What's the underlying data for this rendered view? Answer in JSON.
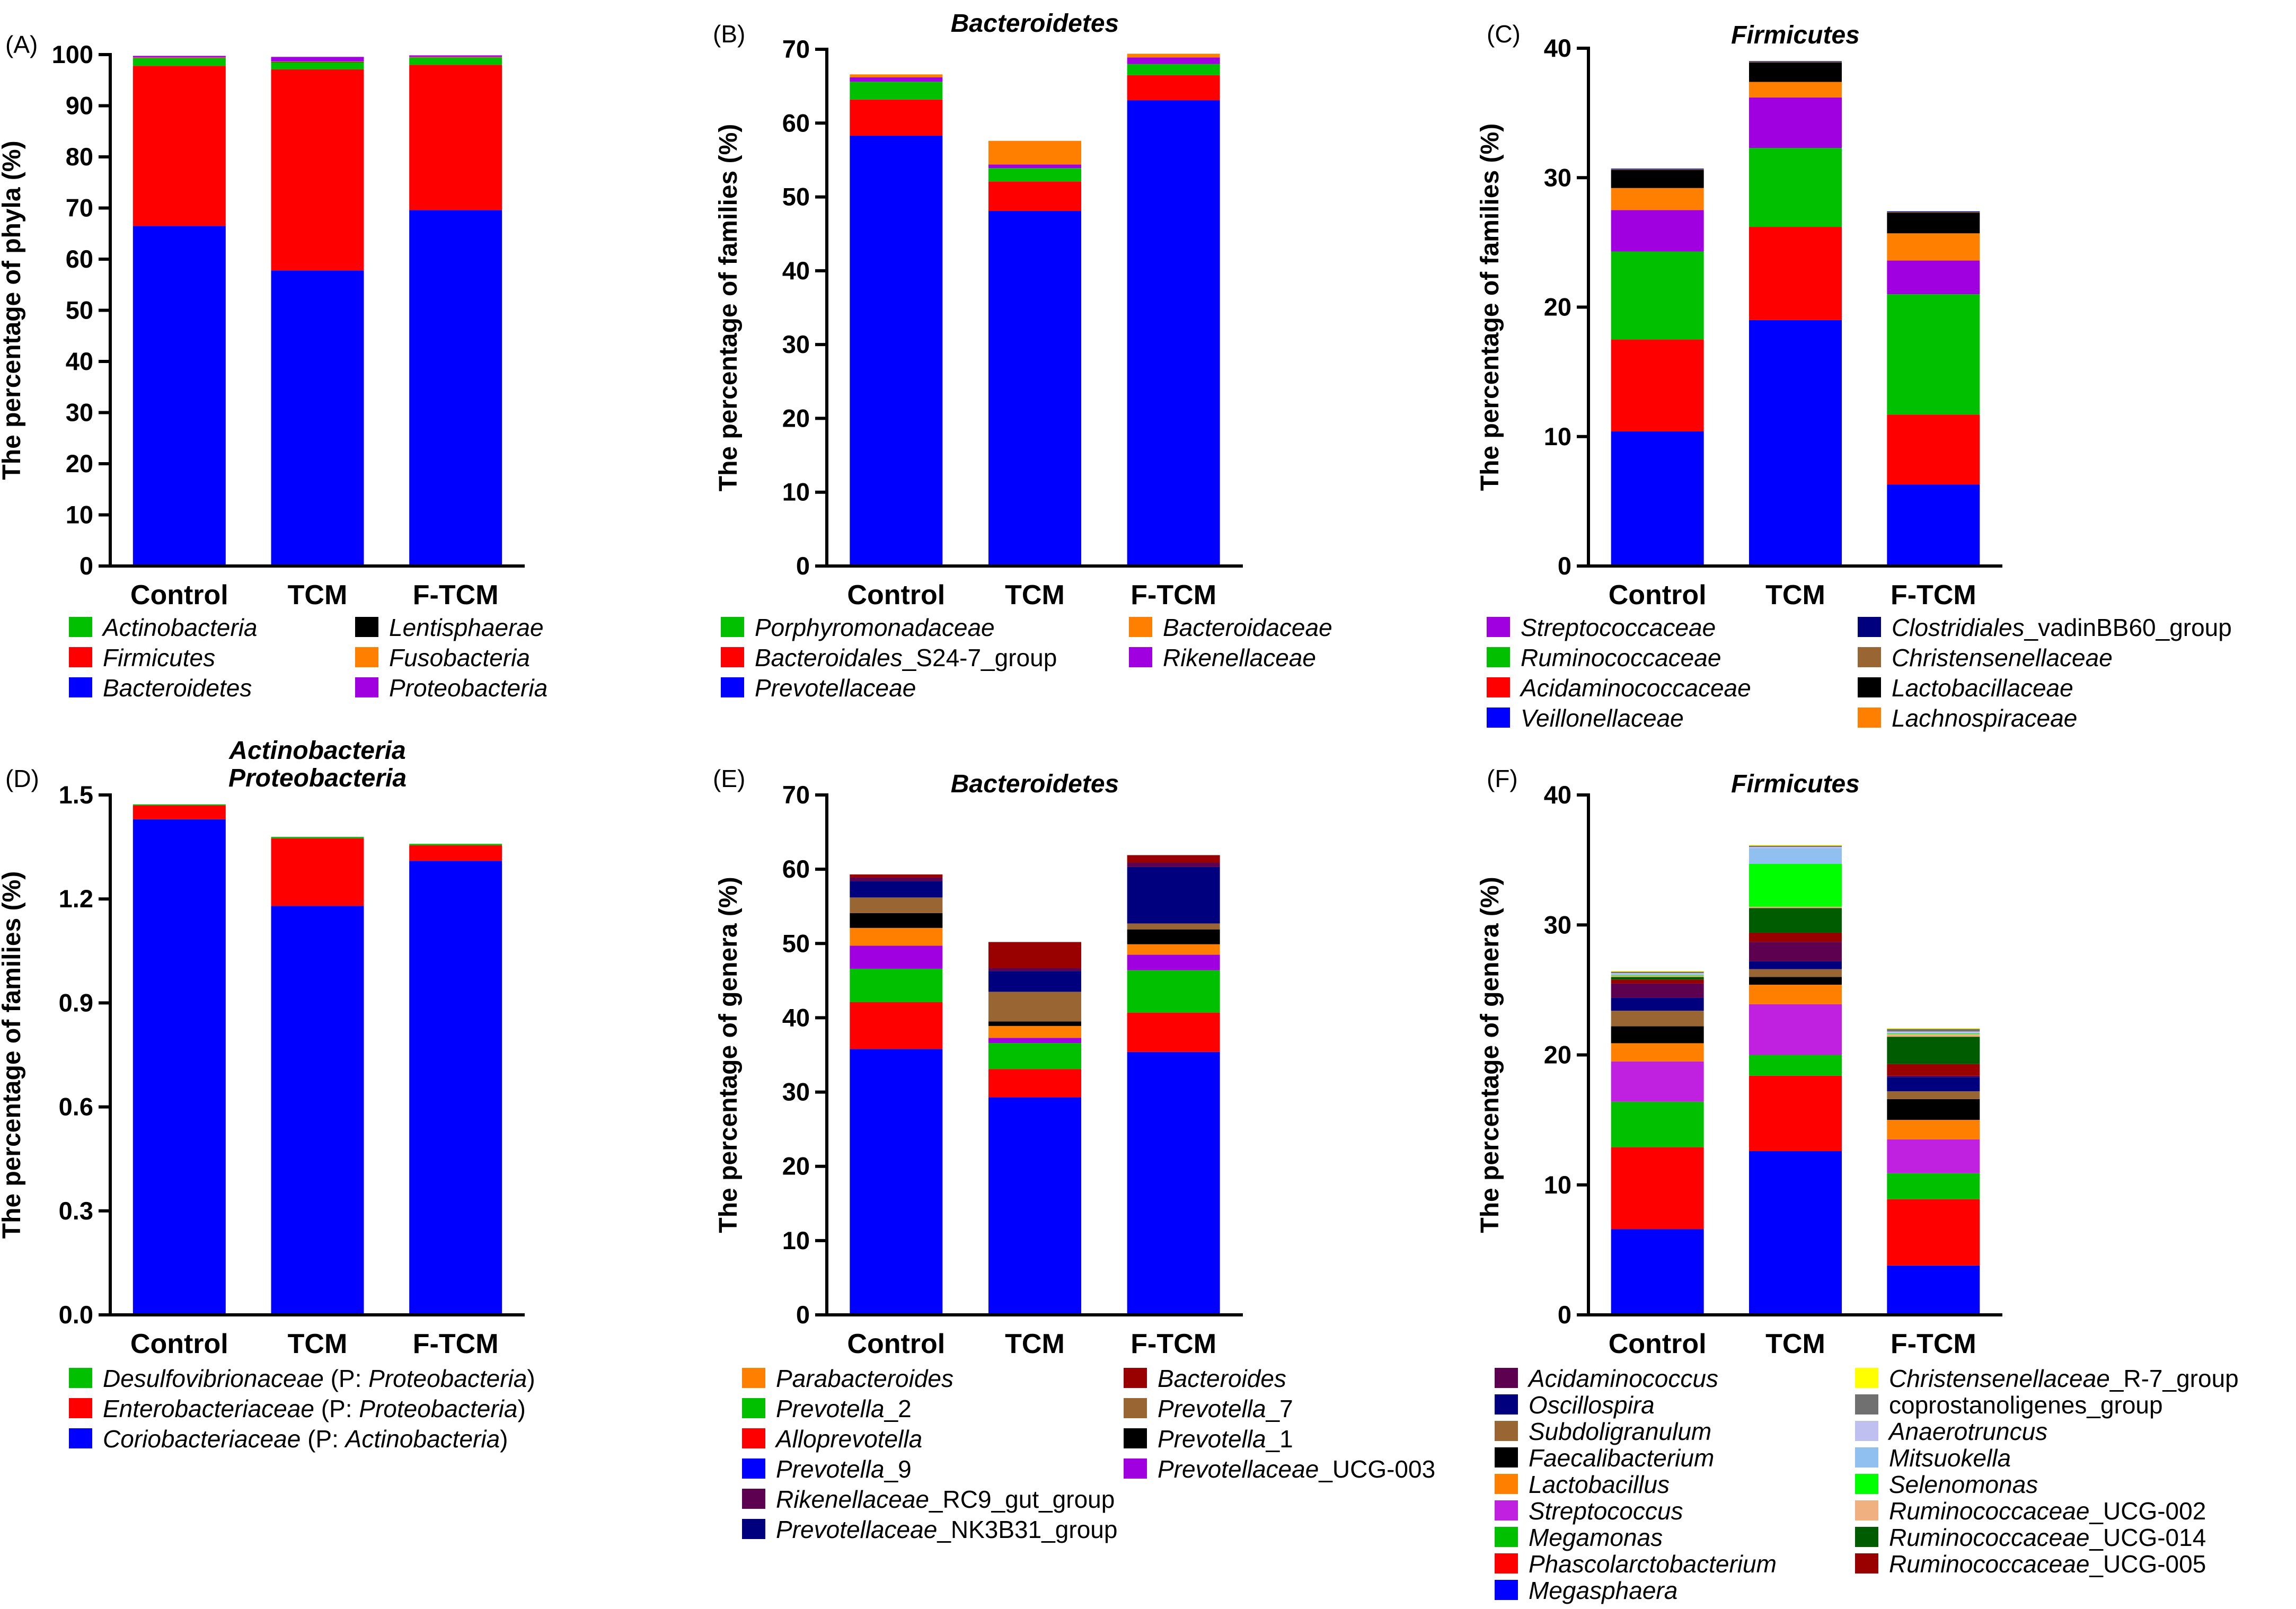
{
  "chart_data": [
    {
      "id": "A",
      "type": "bar",
      "stacked": true,
      "panel_label": "(A)",
      "title": "",
      "xlabel": "",
      "ylabel": "The percentage of phyla (%)",
      "ylim": [
        0,
        100
      ],
      "yticks": [
        "0",
        "10",
        "20",
        "30",
        "40",
        "50",
        "60",
        "70",
        "80",
        "90",
        "100"
      ],
      "categories": [
        "Control",
        "TCM",
        "F-TCM"
      ],
      "series": [
        {
          "name": "Bacteroidetes",
          "italic": true,
          "suffix": "",
          "color": "#0000ff",
          "values": [
            66.5,
            57.8,
            69.6
          ]
        },
        {
          "name": "Firmicutes",
          "italic": true,
          "suffix": "",
          "color": "#ff0000",
          "values": [
            31.3,
            39.3,
            28.4
          ]
        },
        {
          "name": "Actinobacteria",
          "italic": true,
          "suffix": "",
          "color": "#00c000",
          "values": [
            1.5,
            1.4,
            1.4
          ]
        },
        {
          "name": "Lentisphaerae",
          "italic": true,
          "suffix": "",
          "color": "#000000",
          "values": [
            0.05,
            0.05,
            0.05
          ]
        },
        {
          "name": "Fusobacteria",
          "italic": true,
          "suffix": "",
          "color": "#ff8000",
          "values": [
            0.1,
            0.1,
            0.1
          ]
        },
        {
          "name": "Proteobacteria",
          "italic": true,
          "suffix": "",
          "color": "#a000e0",
          "values": [
            0.3,
            0.9,
            0.3
          ]
        }
      ]
    },
    {
      "id": "B",
      "type": "bar",
      "stacked": true,
      "panel_label": "(B)",
      "title": "Bacteroidetes",
      "xlabel": "",
      "ylabel": "The percentage of families (%)",
      "ylim": [
        0,
        70
      ],
      "yticks": [
        "0",
        "10",
        "20",
        "30",
        "40",
        "50",
        "60",
        "70"
      ],
      "categories": [
        "Control",
        "TCM",
        "F-TCM"
      ],
      "series": [
        {
          "name": "Prevotellaceae",
          "italic": true,
          "suffix": "",
          "color": "#0000ff",
          "values": [
            58.3,
            48.1,
            63.1
          ]
        },
        {
          "name": "Bacteroidales",
          "italic": true,
          "suffix": "_S24-7_group",
          "color": "#ff0000",
          "values": [
            4.9,
            4.0,
            3.4
          ]
        },
        {
          "name": "Porphyromonadaceae",
          "italic": true,
          "suffix": "",
          "color": "#00c000",
          "values": [
            2.4,
            1.8,
            1.5
          ]
        },
        {
          "name": "Rikenellaceae",
          "italic": true,
          "suffix": "",
          "color": "#a000e0",
          "values": [
            0.6,
            0.5,
            0.9
          ]
        },
        {
          "name": "Bacteroidaceae",
          "italic": true,
          "suffix": "",
          "color": "#ff8000",
          "values": [
            0.4,
            3.2,
            0.5
          ]
        }
      ]
    },
    {
      "id": "C",
      "type": "bar",
      "stacked": true,
      "panel_label": "(C)",
      "title": "Firmicutes",
      "xlabel": "",
      "ylabel": "The percentage of families (%)",
      "ylim": [
        0,
        40
      ],
      "yticks": [
        "0",
        "10",
        "20",
        "30",
        "40"
      ],
      "categories": [
        "Control",
        "TCM",
        "F-TCM"
      ],
      "series": [
        {
          "name": "Veillonellaceae",
          "italic": true,
          "suffix": "",
          "color": "#0000ff",
          "values": [
            10.4,
            19.0,
            6.3
          ]
        },
        {
          "name": "Acidaminococcaceae",
          "italic": true,
          "suffix": "",
          "color": "#ff0000",
          "values": [
            7.1,
            7.2,
            5.4
          ]
        },
        {
          "name": "Ruminococcaceae",
          "italic": true,
          "suffix": "",
          "color": "#00c000",
          "values": [
            6.8,
            6.1,
            9.3
          ]
        },
        {
          "name": "Streptococcaceae",
          "italic": true,
          "suffix": "",
          "color": "#a000e0",
          "values": [
            3.2,
            3.9,
            2.6
          ]
        },
        {
          "name": "Lachnospiraceae",
          "italic": true,
          "suffix": "",
          "color": "#ff8000",
          "values": [
            1.7,
            1.2,
            2.1
          ]
        },
        {
          "name": "Lactobacillaceae",
          "italic": true,
          "suffix": "",
          "color": "#000000",
          "values": [
            1.4,
            1.5,
            1.6
          ]
        },
        {
          "name": "Christensenellaceae",
          "italic": true,
          "suffix": "",
          "color": "#996633",
          "values": [
            0.05,
            0.05,
            0.05
          ]
        },
        {
          "name": "Clostridiales",
          "italic": true,
          "suffix": "_vadinBB60_group",
          "color": "#00007f",
          "values": [
            0.05,
            0.05,
            0.05
          ]
        }
      ]
    },
    {
      "id": "D",
      "type": "bar",
      "stacked": true,
      "panel_label": "(D)",
      "title": "Actinobacteria",
      "title2": "Proteobacteria",
      "xlabel": "",
      "ylabel": "The percentage of families (%)",
      "ylim": [
        0,
        1.5
      ],
      "yticks": [
        "0.0",
        "0.3",
        "0.6",
        "0.9",
        "1.2",
        "1.5"
      ],
      "categories": [
        "Control",
        "TCM",
        "F-TCM"
      ],
      "series": [
        {
          "name": "Coriobacteriaceae",
          "italic": true,
          "suffix": " (P: ",
          "suffix_italic": "Actinobacteria",
          "suffix_end": ")",
          "color": "#0000ff",
          "values": [
            1.43,
            1.18,
            1.31
          ]
        },
        {
          "name": "Enterobacteriaceae",
          "italic": true,
          "suffix": " (P: ",
          "suffix_italic": "Proteobacteria",
          "suffix_end": ")",
          "color": "#ff0000",
          "values": [
            0.04,
            0.195,
            0.045
          ]
        },
        {
          "name": "Desulfovibrionaceae",
          "italic": true,
          "suffix": " (P: ",
          "suffix_italic": "Proteobacteria",
          "suffix_end": ")",
          "color": "#00c000",
          "values": [
            0.003,
            0.004,
            0.004
          ]
        }
      ]
    },
    {
      "id": "E",
      "type": "bar",
      "stacked": true,
      "panel_label": "(E)",
      "title": "Bacteroidetes",
      "xlabel": "",
      "ylabel": "The percentage of genera (%)",
      "ylim": [
        0,
        70
      ],
      "yticks": [
        "0",
        "10",
        "20",
        "30",
        "40",
        "50",
        "60",
        "70"
      ],
      "categories": [
        "Control",
        "TCM",
        "F-TCM"
      ],
      "series": [
        {
          "name": "Prevotella",
          "italic": true,
          "suffix": "_9",
          "color": "#0000ff",
          "values": [
            35.8,
            29.3,
            35.4
          ]
        },
        {
          "name": "Alloprevotella",
          "italic": true,
          "suffix": "",
          "color": "#ff0000",
          "values": [
            6.3,
            3.8,
            5.3
          ]
        },
        {
          "name": "Prevotella",
          "italic": true,
          "suffix": "_2",
          "color": "#00c000",
          "values": [
            4.5,
            3.5,
            5.7
          ]
        },
        {
          "name": "Prevotellaceae",
          "italic": true,
          "suffix": "_UCG-003",
          "color": "#a000e0",
          "values": [
            3.1,
            0.7,
            2.1
          ]
        },
        {
          "name": "Parabacteroides",
          "italic": true,
          "suffix": "",
          "color": "#ff8000",
          "values": [
            2.4,
            1.6,
            1.4
          ]
        },
        {
          "name": "Prevotella",
          "italic": true,
          "suffix": "_1",
          "color": "#000000",
          "values": [
            2.0,
            0.6,
            2.0
          ]
        },
        {
          "name": "Prevotella",
          "italic": true,
          "suffix": "_7",
          "color": "#996633",
          "values": [
            2.1,
            4.0,
            0.8
          ]
        },
        {
          "name": "Prevotellaceae",
          "italic": true,
          "suffix": "_NK3B31_group",
          "color": "#00007f",
          "values": [
            2.2,
            2.8,
            7.6
          ]
        },
        {
          "name": "Rikenellaceae",
          "italic": true,
          "suffix": "_RC9_gut_group",
          "color": "#5c004f",
          "values": [
            0.5,
            0.4,
            0.6
          ]
        },
        {
          "name": "Bacteroides",
          "italic": true,
          "suffix": "",
          "color": "#990000",
          "values": [
            0.4,
            3.5,
            1.0
          ]
        }
      ]
    },
    {
      "id": "F",
      "type": "bar",
      "stacked": true,
      "panel_label": "(F)",
      "title": "Firmicutes",
      "xlabel": "",
      "ylabel": "The percentage of genera (%)",
      "ylim": [
        0,
        40
      ],
      "yticks": [
        "0",
        "10",
        "20",
        "30",
        "40"
      ],
      "categories": [
        "Control",
        "TCM",
        "F-TCM"
      ],
      "series": [
        {
          "name": "Megasphaera",
          "italic": true,
          "suffix": "",
          "color": "#0000ff",
          "values": [
            6.6,
            12.6,
            3.8
          ]
        },
        {
          "name": "Phascolarctobacterium",
          "italic": true,
          "suffix": "",
          "color": "#ff0000",
          "values": [
            6.3,
            5.8,
            5.1
          ]
        },
        {
          "name": "Megamonas",
          "italic": true,
          "suffix": "",
          "color": "#00c000",
          "values": [
            3.5,
            1.6,
            2.0
          ]
        },
        {
          "name": "Streptococcus",
          "italic": true,
          "suffix": "",
          "color": "#c020e0",
          "values": [
            3.1,
            3.9,
            2.6
          ]
        },
        {
          "name": "Lactobacillus",
          "italic": true,
          "suffix": "",
          "color": "#ff8000",
          "values": [
            1.4,
            1.5,
            1.5
          ]
        },
        {
          "name": "Faecalibacterium",
          "italic": true,
          "suffix": "",
          "color": "#000000",
          "values": [
            1.3,
            0.6,
            1.6
          ]
        },
        {
          "name": "Subdoligranulum",
          "italic": true,
          "suffix": "",
          "color": "#996633",
          "values": [
            1.2,
            0.6,
            0.6
          ]
        },
        {
          "name": "Oscillospira",
          "italic": true,
          "suffix": "",
          "color": "#00007f",
          "values": [
            1.0,
            0.6,
            1.1
          ]
        },
        {
          "name": "Acidaminococcus",
          "italic": true,
          "suffix": "",
          "color": "#5c004f",
          "values": [
            1.1,
            1.5,
            0.1
          ]
        },
        {
          "name": "Ruminococcaceae",
          "italic": true,
          "suffix": "_UCG-005",
          "color": "#990000",
          "values": [
            0.3,
            0.7,
            0.9
          ]
        },
        {
          "name": "Ruminococcaceae",
          "italic": true,
          "suffix": "_UCG-014",
          "color": "#005c00",
          "values": [
            0.2,
            1.9,
            2.1
          ]
        },
        {
          "name": "Ruminococcaceae",
          "italic": true,
          "suffix": "_UCG-002",
          "color": "#f0b080",
          "values": [
            0.1,
            0.1,
            0.2
          ]
        },
        {
          "name": "Selenomonas",
          "italic": true,
          "suffix": "",
          "color": "#00ff00",
          "values": [
            0.05,
            3.3,
            0.05
          ]
        },
        {
          "name": "Mitsuokella",
          "italic": true,
          "suffix": "",
          "color": "#90c0f0",
          "values": [
            0.05,
            1.2,
            0.05
          ]
        },
        {
          "name": "Anaerotruncus",
          "italic": true,
          "suffix": "",
          "color": "#c0c0f0",
          "values": [
            0.1,
            0.1,
            0.1
          ]
        },
        {
          "name": "coprostanoligenes_group",
          "italic": false,
          "suffix": "",
          "color": "#707070",
          "values": [
            0.1,
            0.1,
            0.2
          ]
        },
        {
          "name": "Christensenellaceae",
          "italic": true,
          "suffix": "_R-7_group",
          "color": "#ffff00",
          "values": [
            0.05,
            0.05,
            0.05
          ]
        }
      ]
    }
  ],
  "legends": {
    "A": [
      [
        "Actinobacteria",
        "Lentisphaerae"
      ],
      [
        "Firmicutes",
        "Fusobacteria"
      ],
      [
        "Bacteroidetes",
        "Proteobacteria"
      ]
    ],
    "B": [
      [
        "Porphyromonadaceae",
        "Bacteroidaceae"
      ],
      [
        "Bacteroidales_S24-7_group",
        "Rikenellaceae"
      ],
      [
        "Prevotellaceae",
        ""
      ]
    ],
    "C": [
      [
        "Streptococcaceae",
        "Clostridiales_vadinBB60_group"
      ],
      [
        "Ruminococcaceae",
        "Christensenellaceae"
      ],
      [
        "Acidaminococcaceae",
        "Lactobacillaceae"
      ],
      [
        "Veillonellaceae",
        "Lachnospiraceae"
      ]
    ],
    "D": [
      [
        "Desulfovibrionaceae"
      ],
      [
        "Enterobacteriaceae"
      ],
      [
        "Coriobacteriaceae"
      ]
    ],
    "E": [
      [
        "Parabacteroides",
        "Bacteroides"
      ],
      [
        "Prevotella_2",
        "Prevotella_7"
      ],
      [
        "Alloprevotella",
        "Prevotella_1"
      ],
      [
        "Prevotella_9",
        "Prevotellaceae_UCG-003"
      ],
      [
        "Rikenellaceae_RC9_gut_group",
        ""
      ],
      [
        "Prevotellaceae_NK3B31_group",
        ""
      ]
    ],
    "F": [
      [
        "Acidaminococcus",
        "Christensenellaceae_R-7_group"
      ],
      [
        "Oscillospira",
        "coprostanoligenes_group"
      ],
      [
        "Subdoligranulum",
        "Anaerotruncus"
      ],
      [
        "Faecalibacterium",
        "Mitsuokella"
      ],
      [
        "Lactobacillus",
        "Selenomonas"
      ],
      [
        "Streptococcus",
        "Ruminococcaceae_UCG-002"
      ],
      [
        "Megamonas",
        "Ruminococcaceae_UCG-014"
      ],
      [
        "Phascolarctobacterium",
        "Ruminococcaceae_UCG-005"
      ],
      [
        "Megasphaera",
        ""
      ]
    ]
  }
}
